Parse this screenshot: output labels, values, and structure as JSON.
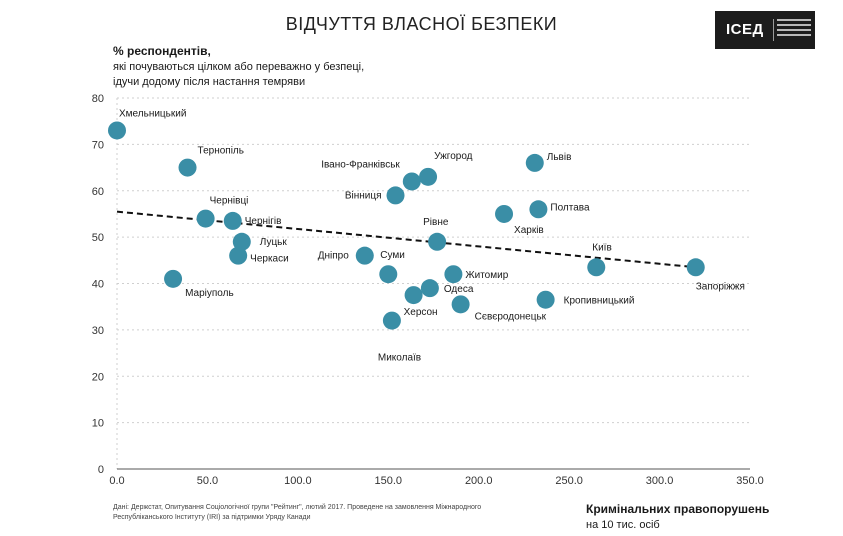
{
  "title": "ВІДЧУТТЯ ВЛАСНОЇ БЕЗПЕКИ",
  "logo_text": "ІСЕД",
  "y_title": {
    "line1": "% респондентів,",
    "line2": "які почуваються цілком або переважно у безпеці,",
    "line3": "ідучи додому після настання темряви"
  },
  "x_title": {
    "line1": "Кримінальних правопорушень",
    "line2": "на 10 тис. осіб"
  },
  "source": "Дані: Держстат, Опитування Соціологічної групи \"Рейтинг\", лютий 2017. Проведене на замовлення Міжнародного Республіканського Інституту (IRI) за підтримки Уряду Канади",
  "colors": {
    "point": "#3a8ea6",
    "trend": "#111111",
    "grid": "#cfcfcf",
    "axis": "#555555"
  },
  "chart_data": {
    "type": "scatter",
    "xlim": [
      0,
      350
    ],
    "ylim": [
      0,
      80
    ],
    "x_ticks": [
      "0.0",
      "50.0",
      "100.0",
      "150.0",
      "200.0",
      "250.0",
      "300.0",
      "350.0"
    ],
    "y_ticks": [
      "0",
      "10",
      "20",
      "30",
      "40",
      "50",
      "60",
      "70",
      "80"
    ],
    "grid": "horizontal dashed",
    "trendline": {
      "x": [
        0,
        320
      ],
      "y": [
        55.5,
        43.5
      ]
    },
    "points": [
      {
        "label": "Хмельницький",
        "x": 0,
        "y": 73
      },
      {
        "label": "Тернопіль",
        "x": 39,
        "y": 65
      },
      {
        "label": "Чернівці",
        "x": 49,
        "y": 54
      },
      {
        "label": "Чернігів",
        "x": 64,
        "y": 53.5
      },
      {
        "label": "Луцьк",
        "x": 69,
        "y": 49
      },
      {
        "label": "Черкаси",
        "x": 67,
        "y": 46
      },
      {
        "label": "Маріуполь",
        "x": 31,
        "y": 41
      },
      {
        "label": "Івано-Франківськ",
        "x": 163,
        "y": 62
      },
      {
        "label": "Ужгород",
        "x": 172,
        "y": 63
      },
      {
        "label": "Вінниця",
        "x": 154,
        "y": 59
      },
      {
        "label": "Рівне",
        "x": 177,
        "y": 49
      },
      {
        "label": "Дніпро",
        "x": 137,
        "y": 46
      },
      {
        "label": "Суми",
        "x": 150,
        "y": 42
      },
      {
        "label": "Житомир",
        "x": 186,
        "y": 42
      },
      {
        "label": "Одеса",
        "x": 173,
        "y": 39
      },
      {
        "label": "Херсон",
        "x": 164,
        "y": 37.5
      },
      {
        "label": "Сєвєродонецьк",
        "x": 190,
        "y": 35.5
      },
      {
        "label": "Миколаїв",
        "x": 152,
        "y": 32
      },
      {
        "label": "Львів",
        "x": 231,
        "y": 66
      },
      {
        "label": "Харків",
        "x": 214,
        "y": 55
      },
      {
        "label": "Полтава",
        "x": 233,
        "y": 56
      },
      {
        "label": "Київ",
        "x": 265,
        "y": 43.5
      },
      {
        "label": "Кропивницький",
        "x": 237,
        "y": 36.5
      },
      {
        "label": "Запоріжжя",
        "x": 320,
        "y": 43.5
      }
    ]
  }
}
